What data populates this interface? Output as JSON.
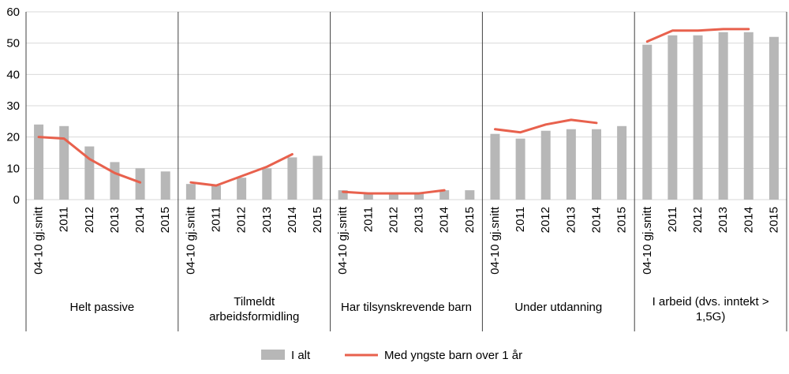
{
  "chart_data": {
    "type": "bar",
    "combo": "bar+line",
    "title": "",
    "xlabel": "",
    "ylabel": "",
    "ylim": [
      0,
      60
    ],
    "grid": true,
    "legend_position": "bottom",
    "y_axis": {
      "min": 0,
      "max": 60,
      "step": 10,
      "ticks": [
        "0",
        "10",
        "20",
        "30",
        "40",
        "50",
        "60"
      ]
    },
    "categories": [
      "04-10 gj.snitt",
      "2011",
      "2012",
      "2013",
      "2014",
      "2015"
    ],
    "series": [
      {
        "name": "I alt",
        "type": "bar",
        "color": "#b7b7b7"
      },
      {
        "name": "Med yngste barn over 1 år",
        "type": "line",
        "color": "#e8614d"
      }
    ],
    "groups": [
      {
        "label": "Helt passive",
        "label_lines": [
          "Helt passive"
        ],
        "bars": [
          24,
          23.5,
          17,
          12,
          10,
          9
        ],
        "line": [
          20,
          19.5,
          13,
          8.5,
          5.5
        ]
      },
      {
        "label": "Tilmeldt arbeidsformidling",
        "label_lines": [
          "Tilmeldt",
          "arbeidsformidling"
        ],
        "bars": [
          5,
          4.5,
          7,
          10,
          13.5,
          14
        ],
        "line": [
          5.5,
          4.5,
          7.5,
          10.5,
          14.5
        ]
      },
      {
        "label": "Har tilsynskrevende barn",
        "label_lines": [
          "Har tilsynskrevende barn"
        ],
        "bars": [
          3,
          2,
          2,
          2,
          3,
          3
        ],
        "line": [
          2.5,
          2,
          2,
          2,
          3
        ]
      },
      {
        "label": "Under utdanning",
        "label_lines": [
          "Under utdanning"
        ],
        "bars": [
          21,
          19.5,
          22,
          22.5,
          22.5,
          23.5
        ],
        "line": [
          22.5,
          21.5,
          24,
          25.5,
          24.5
        ]
      },
      {
        "label": "I arbeid (dvs. inntekt > 1,5G)",
        "label_lines": [
          "I arbeid (dvs. inntekt >",
          "1,5G)"
        ],
        "bars": [
          49.5,
          52.5,
          52.5,
          53.5,
          53.5,
          52
        ],
        "line": [
          50.5,
          54,
          54,
          54.5,
          54.5
        ]
      }
    ]
  },
  "legend": {
    "bar_label": "I alt",
    "line_label": "Med yngste barn over 1 år"
  }
}
